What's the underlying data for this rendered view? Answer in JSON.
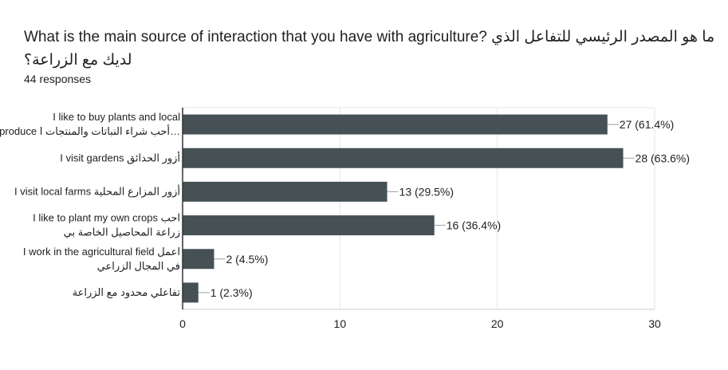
{
  "question": {
    "title": "What is the main source of interaction that you have with agriculture? ما هو المصدر الرئيسي للتفاعل الذي لديك مع الزراعة؟",
    "responses": "44 responses"
  },
  "chart_data": {
    "type": "bar",
    "orientation": "horizontal",
    "categories": [
      [
        "I like to buy plants and local",
        "produce أحب شراء النباتات والمنتجات ا…"
      ],
      [
        "I visit gardens أزور الحدائق"
      ],
      [
        "I visit local farms أزور المزارع المحلية"
      ],
      [
        "I like to plant my own crops احب",
        "زراعة المحاصيل الخاصة بي"
      ],
      [
        "I work in the agricultural field اعمل",
        "في المجال الزراعي"
      ],
      [
        "تفاعلي محدود مع الزراعة"
      ]
    ],
    "values": [
      27,
      28,
      13,
      16,
      2,
      1
    ],
    "value_labels": [
      "27 (61.4%)",
      "28 (63.6%)",
      "13 (29.5%)",
      "16 (36.4%)",
      "2 (4.5%)",
      "1 (2.3%)"
    ],
    "xlim": [
      0,
      30
    ],
    "xticks": [
      0,
      10,
      20,
      30
    ],
    "bar_color": "#455154",
    "grid": true
  }
}
